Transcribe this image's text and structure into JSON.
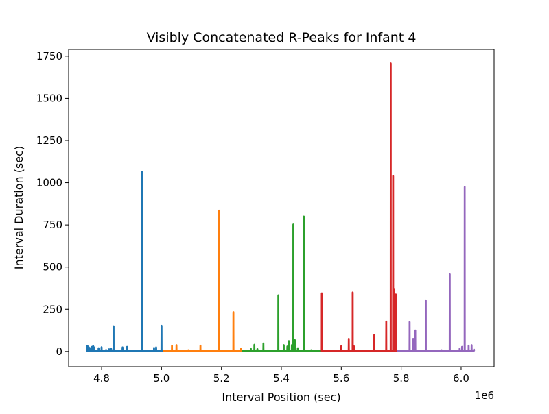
{
  "chart_data": {
    "type": "line",
    "title": "Visibly Concatenated R-Peaks for Infant 4",
    "xlabel": "Interval Position (sec)",
    "ylabel": "Interval Duration (sec)",
    "x_offset_label": "1e6",
    "x_scale_factor": 1000000,
    "xlim": [
      4690000,
      6110000
    ],
    "ylim": [
      -90,
      1790
    ],
    "xticks": [
      4800000,
      5000000,
      5200000,
      5400000,
      5600000,
      5800000,
      6000000
    ],
    "xtick_labels": [
      "4.8",
      "5.0",
      "5.2",
      "5.4",
      "5.6",
      "5.8",
      "6.0"
    ],
    "yticks": [
      0,
      250,
      500,
      750,
      1000,
      1250,
      1500,
      1750
    ],
    "ytick_labels": [
      "0",
      "250",
      "500",
      "750",
      "1000",
      "1250",
      "1500",
      "1750"
    ],
    "grid": false,
    "legend": false,
    "series": [
      {
        "color": "#1f77b4",
        "x_range": [
          4750000,
          5005000
        ],
        "baseline": 2,
        "spikes": [
          [
            4752000,
            33
          ],
          [
            4756000,
            30
          ],
          [
            4760000,
            22
          ],
          [
            4768000,
            28
          ],
          [
            4772000,
            33
          ],
          [
            4775000,
            25
          ],
          [
            4790000,
            20
          ],
          [
            4800000,
            26
          ],
          [
            4815000,
            10
          ],
          [
            4825000,
            14
          ],
          [
            4832000,
            16
          ],
          [
            4840000,
            150
          ],
          [
            4870000,
            25
          ],
          [
            4885000,
            28
          ],
          [
            4935000,
            1065
          ],
          [
            4975000,
            22
          ],
          [
            4982000,
            25
          ],
          [
            5000000,
            153
          ]
        ]
      },
      {
        "color": "#ff7f0e",
        "x_range": [
          5005000,
          5268000
        ],
        "baseline": 2,
        "spikes": [
          [
            5035000,
            35
          ],
          [
            5050000,
            38
          ],
          [
            5090000,
            8
          ],
          [
            5130000,
            35
          ],
          [
            5192000,
            835
          ],
          [
            5240000,
            233
          ],
          [
            5265000,
            18
          ]
        ]
      },
      {
        "color": "#2ca02c",
        "x_range": [
          5268000,
          5533000
        ],
        "baseline": 2,
        "spikes": [
          [
            5298000,
            18
          ],
          [
            5310000,
            40
          ],
          [
            5320000,
            15
          ],
          [
            5340000,
            48
          ],
          [
            5390000,
            333
          ],
          [
            5408000,
            38
          ],
          [
            5420000,
            30
          ],
          [
            5425000,
            62
          ],
          [
            5435000,
            38
          ],
          [
            5440000,
            753
          ],
          [
            5445000,
            68
          ],
          [
            5455000,
            20
          ],
          [
            5475000,
            800
          ],
          [
            5500000,
            8
          ]
        ]
      },
      {
        "color": "#d62728",
        "x_range": [
          5533000,
          5785000
        ],
        "baseline": 2,
        "spikes": [
          [
            5535000,
            345
          ],
          [
            5600000,
            32
          ],
          [
            5625000,
            75
          ],
          [
            5638000,
            350
          ],
          [
            5642000,
            32
          ],
          [
            5710000,
            98
          ],
          [
            5750000,
            178
          ],
          [
            5765000,
            1707
          ],
          [
            5773000,
            1040
          ],
          [
            5777000,
            370
          ],
          [
            5782000,
            338
          ]
        ]
      },
      {
        "color": "#9467bd",
        "x_range": [
          5785000,
          6045000
        ],
        "baseline": 4,
        "spikes": [
          [
            5828000,
            175
          ],
          [
            5840000,
            75
          ],
          [
            5847000,
            125
          ],
          [
            5882000,
            303
          ],
          [
            5935000,
            8
          ],
          [
            5962000,
            458
          ],
          [
            5995000,
            18
          ],
          [
            6003000,
            28
          ],
          [
            6012000,
            975
          ],
          [
            6025000,
            35
          ],
          [
            6035000,
            38
          ],
          [
            6043000,
            12
          ]
        ]
      }
    ]
  }
}
